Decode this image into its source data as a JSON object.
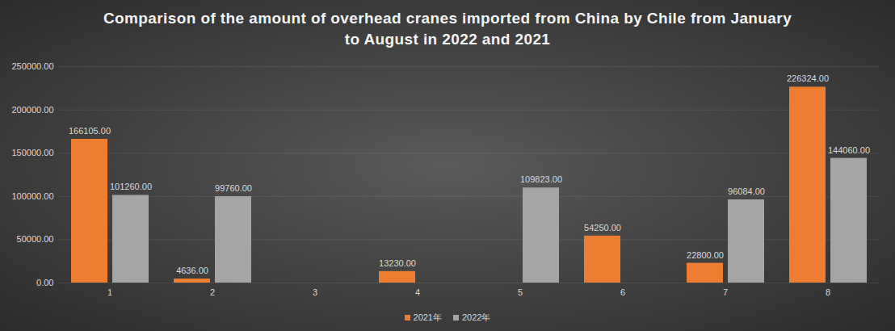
{
  "chart_data": {
    "type": "bar",
    "title": "Comparison of the amount of overhead cranes imported from China by Chile from January to August in 2022 and 2021",
    "categories": [
      "1",
      "2",
      "3",
      "4",
      "5",
      "6",
      "7",
      "8"
    ],
    "series": [
      {
        "name": "2021年",
        "color": "#ED7D31",
        "values": [
          166105,
          4636,
          null,
          13230,
          null,
          54250,
          22800,
          226324
        ],
        "value_labels": [
          "166105.00",
          "4636.00",
          null,
          "13230.00",
          null,
          "54250.00",
          "22800.00",
          "226324.00"
        ]
      },
      {
        "name": "2022年",
        "color": "#A5A5A5",
        "values": [
          101260,
          99760,
          null,
          null,
          109823,
          null,
          96084,
          144060
        ],
        "value_labels": [
          "101260.00",
          "99760.00",
          null,
          null,
          "109823.00",
          null,
          "96084.00",
          "144060.00"
        ]
      }
    ],
    "ylim": [
      0,
      250000
    ],
    "yticks": [
      {
        "value": 0,
        "label": "0.00"
      },
      {
        "value": 50000,
        "label": "50000.00"
      },
      {
        "value": 100000,
        "label": "100000.00"
      },
      {
        "value": 150000,
        "label": "150000.00"
      },
      {
        "value": 200000,
        "label": "200000.00"
      },
      {
        "value": 250000,
        "label": "250000.00"
      }
    ],
    "grid": true,
    "data_labels": true,
    "legend": "bottom"
  }
}
